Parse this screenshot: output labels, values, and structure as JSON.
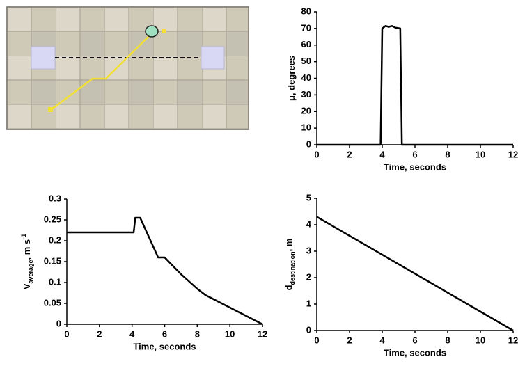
{
  "chart_data": [
    {
      "type": "line",
      "ylabel": [
        "μ, degrees"
      ],
      "xlabel": "Time, seconds",
      "color": "#000000",
      "x": [
        0,
        3.9,
        4.0,
        4.2,
        4.4,
        4.6,
        4.8,
        5.1,
        5.2,
        12
      ],
      "values": [
        0,
        0,
        70,
        71.5,
        71,
        71.5,
        70.5,
        70,
        0,
        0
      ],
      "xlim": [
        0,
        12
      ],
      "xticks": [
        0,
        2,
        4,
        6,
        8,
        10,
        12
      ],
      "ylim": [
        0,
        80
      ],
      "yticks": [
        0,
        10,
        20,
        30,
        40,
        50,
        60,
        70,
        80
      ]
    },
    {
      "type": "line",
      "ylabel": [
        "V",
        "average",
        ", m s",
        "-1"
      ],
      "xlabel": "Time, seconds",
      "color": "#000000",
      "x": [
        0,
        4.1,
        4.2,
        4.5,
        5.6,
        6.0,
        7,
        8,
        8.5,
        10,
        12
      ],
      "values": [
        0.22,
        0.22,
        0.255,
        0.255,
        0.16,
        0.16,
        0.12,
        0.085,
        0.07,
        0.04,
        0
      ],
      "xlim": [
        0,
        12
      ],
      "xticks": [
        0,
        2,
        4,
        6,
        8,
        10,
        12
      ],
      "ylim": [
        0,
        0.3
      ],
      "yticks": [
        0,
        0.05,
        0.1,
        0.15,
        0.2,
        0.25,
        0.3
      ]
    },
    {
      "type": "line",
      "ylabel": [
        "d",
        "destination",
        ", m"
      ],
      "xlabel": "Time, seconds",
      "color": "#000000",
      "x": [
        0,
        12
      ],
      "values": [
        4.3,
        0
      ],
      "xlim": [
        0,
        12
      ],
      "xticks": [
        0,
        2,
        4,
        6,
        8,
        10,
        12
      ],
      "ylim": [
        0,
        5
      ],
      "yticks": [
        0,
        1,
        2,
        3,
        4,
        5
      ]
    }
  ]
}
